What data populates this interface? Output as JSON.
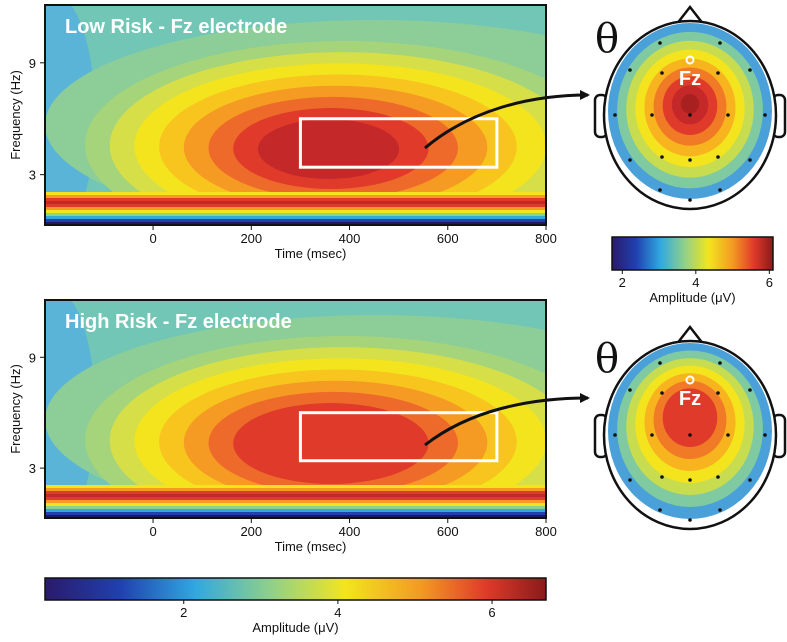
{
  "chart_data": [
    {
      "type": "heatmap",
      "title": "Low Risk - Fz electrode",
      "xlabel": "Time (msec)",
      "ylabel": "Frequency (Hz)",
      "xlim": [
        -220,
        800
      ],
      "ylim": [
        0.3,
        12.1
      ],
      "xticks": [
        0,
        200,
        400,
        600,
        800
      ],
      "yticks": [
        3,
        9
      ],
      "window": {
        "x": [
          300,
          700
        ],
        "y": [
          3.4,
          6
        ]
      }
    },
    {
      "type": "topomap",
      "symbol": "θ",
      "electrode": "Fz"
    },
    {
      "type": "colorbar",
      "label": "Amplitude (μV)",
      "lim": [
        1.72,
        6.1
      ],
      "ticks": [
        2,
        4,
        6
      ]
    },
    {
      "type": "heatmap",
      "title": "High Risk - Fz electrode",
      "xlabel": "Time (msec)",
      "ylabel": "Frequency (Hz)",
      "xlim": [
        -220,
        800
      ],
      "ylim": [
        0.3,
        12.1
      ],
      "xticks": [
        0,
        200,
        400,
        600,
        800
      ],
      "yticks": [
        3,
        9
      ],
      "window": {
        "x": [
          300,
          700
        ],
        "y": [
          3.4,
          6
        ]
      }
    },
    {
      "type": "topomap",
      "symbol": "θ",
      "electrode": "Fz"
    },
    {
      "type": "colorbar",
      "label": "Amplitude (μV)",
      "lim": [
        0.2,
        6.7
      ],
      "ticks": [
        2,
        4,
        6
      ]
    }
  ]
}
